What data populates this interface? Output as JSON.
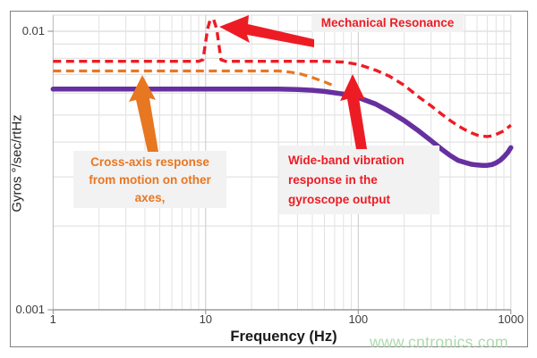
{
  "chart_data": {
    "type": "line",
    "title": "",
    "xlabel": "Frequency (Hz)",
    "ylabel": "Gyros °/sec/rtHz",
    "x_scale": "log",
    "y_scale": "log",
    "xlim": [
      1,
      1000
    ],
    "ylim": [
      0.001,
      0.0115
    ],
    "grid": "on (log major + minor gridlines)",
    "legend": "none",
    "x_ticks": [
      {
        "value": 1,
        "label": "1"
      },
      {
        "value": 10,
        "label": "10"
      },
      {
        "value": 100,
        "label": "100"
      },
      {
        "value": 1000,
        "label": "1000"
      }
    ],
    "y_ticks": [
      {
        "value": 0.01,
        "label": "0.01"
      },
      {
        "value": 0.001,
        "label": "0.001"
      }
    ],
    "series": [
      {
        "id": "vibration-response",
        "name": "Wide-band vibration response with mechanical resonance peak at ~11 Hz",
        "color": "#ed1c24",
        "dash": "dashed",
        "thickness": 3.4,
        "points": [
          [
            1,
            0.0078
          ],
          [
            5,
            0.0078
          ],
          [
            9,
            0.0078
          ],
          [
            9.6,
            0.0079
          ],
          [
            10.3,
            0.0102
          ],
          [
            10.7,
            0.011
          ],
          [
            11.3,
            0.011
          ],
          [
            11.8,
            0.0102
          ],
          [
            12.6,
            0.0079
          ],
          [
            13.5,
            0.0078
          ],
          [
            20,
            0.0078
          ],
          [
            40,
            0.0078
          ],
          [
            60,
            0.0078
          ],
          [
            80,
            0.00775
          ],
          [
            100,
            0.0076
          ],
          [
            130,
            0.00725
          ],
          [
            160,
            0.0069
          ],
          [
            200,
            0.0064
          ],
          [
            250,
            0.0058
          ],
          [
            300,
            0.0054
          ],
          [
            350,
            0.00505
          ],
          [
            400,
            0.00478
          ],
          [
            450,
            0.00458
          ],
          [
            500,
            0.00443
          ],
          [
            550,
            0.00432
          ],
          [
            600,
            0.00424
          ],
          [
            650,
            0.0042
          ],
          [
            700,
            0.00419
          ],
          [
            750,
            0.00421
          ],
          [
            800,
            0.00426
          ],
          [
            900,
            0.00439
          ],
          [
            1000,
            0.0046
          ]
        ]
      },
      {
        "id": "cross-axis-response",
        "name": "Cross-axis response from motion on other axes",
        "color": "#e87722",
        "dash": "dashed",
        "thickness": 3.2,
        "points": [
          [
            1,
            0.0072
          ],
          [
            10,
            0.0072
          ],
          [
            20,
            0.0072
          ],
          [
            30,
            0.0072
          ],
          [
            36,
            0.00713
          ],
          [
            42,
            0.00702
          ],
          [
            48,
            0.00688
          ],
          [
            54,
            0.00672
          ],
          [
            60,
            0.00658
          ],
          [
            66,
            0.00644
          ],
          [
            71,
            0.00632
          ]
        ]
      },
      {
        "id": "gyroscope-output",
        "name": "Gyroscope output noise density",
        "color": "#6630a0",
        "dash": "solid",
        "thickness": 5.5,
        "points": [
          [
            1,
            0.0062
          ],
          [
            5,
            0.0062
          ],
          [
            10,
            0.0062
          ],
          [
            20,
            0.0062
          ],
          [
            30,
            0.0062
          ],
          [
            40,
            0.00618
          ],
          [
            50,
            0.00614
          ],
          [
            60,
            0.00608
          ],
          [
            80,
            0.00595
          ],
          [
            100,
            0.00578
          ],
          [
            130,
            0.00548
          ],
          [
            160,
            0.00515
          ],
          [
            200,
            0.00478
          ],
          [
            250,
            0.00438
          ],
          [
            300,
            0.00405
          ],
          [
            350,
            0.00378
          ],
          [
            400,
            0.00358
          ],
          [
            450,
            0.00344
          ],
          [
            500,
            0.00338
          ],
          [
            550,
            0.00333
          ],
          [
            600,
            0.00331
          ],
          [
            650,
            0.0033
          ],
          [
            700,
            0.0033
          ],
          [
            750,
            0.00332
          ],
          [
            800,
            0.00337
          ],
          [
            850,
            0.00344
          ],
          [
            900,
            0.00354
          ],
          [
            950,
            0.00366
          ],
          [
            1000,
            0.00382
          ]
        ]
      }
    ],
    "annotations": [
      {
        "id": "mechanical-resonance",
        "text": "Mechanical Resonance",
        "color": "#ed1c24",
        "points_to": "resonance spike at ~11 Hz"
      },
      {
        "id": "cross-axis",
        "text": "Cross-axis response\nfrom motion on other\naxes,",
        "color": "#e87722",
        "points_to": "orange dashed line"
      },
      {
        "id": "wide-band",
        "text": "Wide-band vibration\nresponse in the\ngyroscope output",
        "color": "#ed1c24",
        "points_to": "red dashed line"
      }
    ]
  },
  "labels": {
    "watermark": "www.cntronics.com"
  },
  "colors": {
    "red_line": "#ed1c24",
    "orange_line": "#e87722",
    "purple_line": "#6630a0",
    "annotation_box_bg": "#f2f2f2",
    "gridline": "#dcdcdc",
    "watermark_green": "#a5d6a5"
  }
}
